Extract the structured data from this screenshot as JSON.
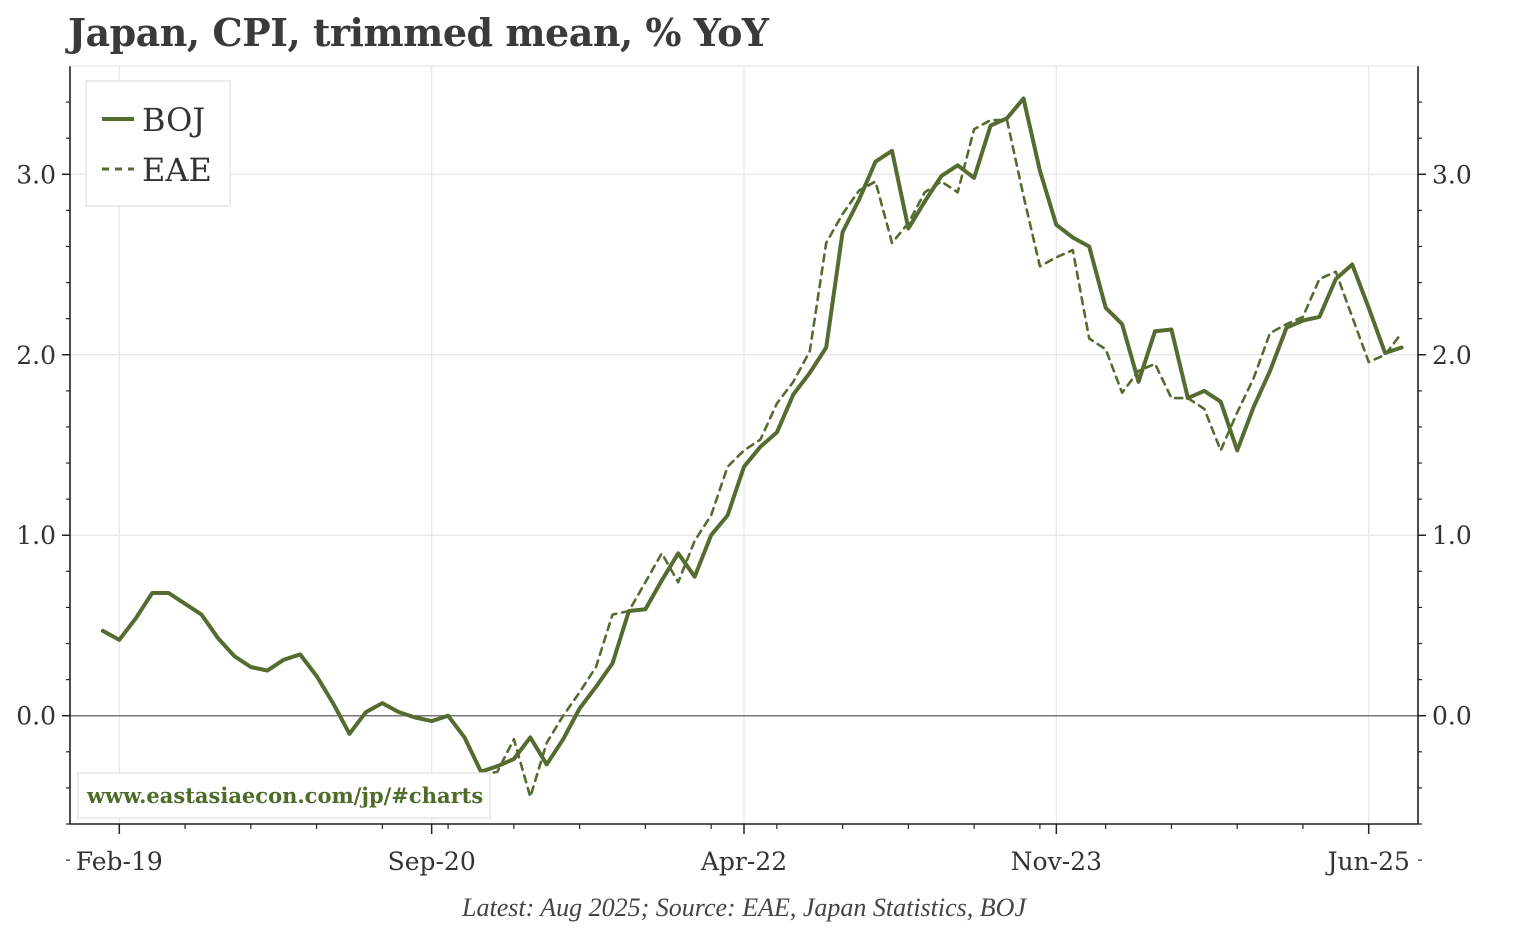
{
  "title": "Japan, CPI, trimmed mean, % YoY",
  "footer": "Latest: Aug 2025; Source: EAE, Japan Statistics, BOJ",
  "watermark": "www.eastasiaecon.com/jp/#charts",
  "colors": {
    "series": "#556b2f",
    "grid": "#e6e6e6",
    "axis": "#222222",
    "zero": "#777777"
  },
  "chart_data": {
    "type": "line",
    "title": "Japan, CPI, trimmed mean, % YoY",
    "xlabel": "",
    "ylabel": "",
    "x_range": [
      "2018-11",
      "2025-09"
    ],
    "ylim": [
      -0.6,
      3.6
    ],
    "x_ticks": [
      {
        "label": "Feb-19",
        "date": "2019-02"
      },
      {
        "label": "Sep-20",
        "date": "2020-09"
      },
      {
        "label": "Apr-22",
        "date": "2022-04"
      },
      {
        "label": "Nov-23",
        "date": "2023-11"
      },
      {
        "label": "Jun-25",
        "date": "2025-06"
      }
    ],
    "y_ticks": [
      0.0,
      1.0,
      2.0,
      3.0
    ],
    "y_tick_labels": [
      "0.0",
      "1.0",
      "2.0",
      "3.0"
    ],
    "grid": true,
    "legend": "top-left",
    "series": [
      {
        "name": "BOJ",
        "style": "solid",
        "start": "2019-01",
        "values": [
          0.47,
          0.42,
          0.54,
          0.68,
          0.68,
          0.62,
          0.56,
          0.43,
          0.33,
          0.27,
          0.25,
          0.31,
          0.34,
          0.22,
          0.07,
          -0.1,
          0.02,
          0.07,
          0.02,
          -0.01,
          -0.03,
          0.0,
          -0.12,
          -0.31,
          -0.28,
          -0.24,
          -0.12,
          -0.27,
          -0.13,
          0.04,
          0.16,
          0.29,
          0.58,
          0.59,
          0.75,
          0.9,
          0.77,
          1.0,
          1.11,
          1.38,
          1.49,
          1.57,
          1.78,
          1.9,
          2.04,
          2.68,
          2.86,
          3.07,
          3.13,
          2.7,
          2.85,
          2.99,
          3.05,
          2.98,
          3.27,
          3.31,
          3.42,
          3.02,
          2.72,
          2.65,
          2.6,
          2.26,
          2.17,
          1.85,
          2.13,
          2.14,
          1.76,
          1.8,
          1.74,
          1.47,
          1.71,
          1.91,
          2.15,
          2.19,
          2.21,
          2.42,
          2.5,
          2.26,
          2.01,
          2.04
        ]
      },
      {
        "name": "EAE",
        "style": "dashed",
        "start": "2020-12",
        "values": [
          -0.33,
          -0.31,
          -0.13,
          -0.45,
          -0.15,
          0.0,
          0.13,
          0.27,
          0.56,
          0.58,
          0.74,
          0.9,
          0.74,
          0.97,
          1.11,
          1.38,
          1.47,
          1.53,
          1.73,
          1.85,
          2.02,
          2.62,
          2.78,
          2.91,
          2.96,
          2.62,
          2.73,
          2.9,
          2.96,
          2.9,
          3.25,
          3.3,
          3.3,
          2.88,
          2.49,
          2.54,
          2.58,
          2.09,
          2.03,
          1.79,
          1.91,
          1.95,
          1.76,
          1.76,
          1.7,
          1.47,
          1.68,
          1.87,
          2.12,
          2.17,
          2.21,
          2.42,
          2.46,
          2.21,
          1.96,
          2.0,
          2.12
        ]
      }
    ]
  }
}
